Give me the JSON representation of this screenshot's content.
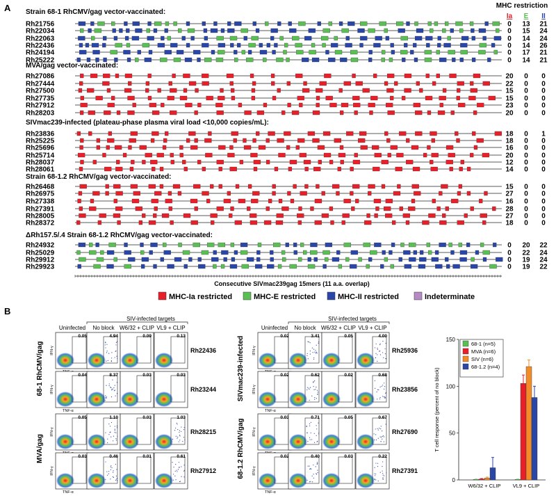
{
  "panel_a": {
    "letter": "A",
    "restriction_header": "MHC restriction",
    "col_labels": [
      "Ia",
      "E",
      "II"
    ],
    "colors": {
      "Ia": "#e8202a",
      "E": "#5cbf55",
      "II": "#2a47a8",
      "indeterminate": "#b48bc4"
    },
    "axis_label": "Consecutive SIVmac239gag 15mers (11 a.a. overlap)",
    "legend": [
      "MHC-Ia restricted",
      "MHC-E restricted",
      "MHC-II restricted",
      "Indeterminate"
    ],
    "groups": [
      {
        "title": "Strain 68-1 RhCMV/gag vector-vaccinated:",
        "kind": "mix",
        "rows": [
          {
            "id": "Rh21756",
            "counts": [
              "0",
              "13",
              "21"
            ]
          },
          {
            "id": "Rh22034",
            "counts": [
              "0",
              "15",
              "24"
            ]
          },
          {
            "id": "Rh22063",
            "counts": [
              "0",
              "14",
              "24"
            ]
          },
          {
            "id": "Rh22436",
            "counts": [
              "0",
              "14",
              "26"
            ]
          },
          {
            "id": "Rh24194",
            "counts": [
              "0",
              "17",
              "21"
            ]
          },
          {
            "id": "Rh25222",
            "counts": [
              "0",
              "14",
              "21"
            ]
          }
        ]
      },
      {
        "title": "MVA/gag vector-vaccinated:",
        "kind": "red",
        "rows": [
          {
            "id": "Rh27086",
            "counts": [
              "20",
              "0",
              "0"
            ]
          },
          {
            "id": "Rh27444",
            "counts": [
              "22",
              "0",
              "0"
            ]
          },
          {
            "id": "Rh27500",
            "counts": [
              "15",
              "0",
              "0"
            ]
          },
          {
            "id": "Rh27735",
            "counts": [
              "15",
              "0",
              "0"
            ]
          },
          {
            "id": "Rh27912",
            "counts": [
              "23",
              "0",
              "0"
            ]
          },
          {
            "id": "Rh28203",
            "counts": [
              "20",
              "0",
              "0"
            ]
          }
        ]
      },
      {
        "title": "SIVmac239-infected (plateau-phase plasma viral load <10,000 copies/mL):",
        "kind": "red",
        "rows": [
          {
            "id": "Rh23836",
            "counts": [
              "18",
              "0",
              "1"
            ]
          },
          {
            "id": "Rh25225",
            "counts": [
              "18",
              "0",
              "0"
            ]
          },
          {
            "id": "Rh25696",
            "counts": [
              "16",
              "0",
              "0"
            ]
          },
          {
            "id": "Rh25714",
            "counts": [
              "20",
              "0",
              "0"
            ]
          },
          {
            "id": "Rh28037",
            "counts": [
              "12",
              "0",
              "0"
            ]
          },
          {
            "id": "Rh28061",
            "counts": [
              "14",
              "0",
              "0"
            ]
          }
        ]
      },
      {
        "title": "Strain 68-1.2 RhCMV/gag vector-vaccinated:",
        "kind": "red",
        "rows": [
          {
            "id": "Rh26468",
            "counts": [
              "15",
              "0",
              "0"
            ]
          },
          {
            "id": "Rh26975",
            "counts": [
              "27",
              "0",
              "0"
            ]
          },
          {
            "id": "Rh27338",
            "counts": [
              "16",
              "0",
              "0"
            ]
          },
          {
            "id": "Rh27391",
            "counts": [
              "28",
              "0",
              "0"
            ]
          },
          {
            "id": "Rh28005",
            "counts": [
              "27",
              "0",
              "0"
            ]
          },
          {
            "id": "Rh28372",
            "counts": [
              "18",
              "0",
              "0"
            ]
          }
        ]
      },
      {
        "title": "ΔRh157.5/.4 Strain 68-1.2 RhCMV/gag vector-vaccinated:",
        "kind": "mix",
        "rows": [
          {
            "id": "Rh24932",
            "counts": [
              "0",
              "20",
              "22"
            ]
          },
          {
            "id": "Rh25029",
            "counts": [
              "0",
              "22",
              "24"
            ]
          },
          {
            "id": "Rh29912",
            "counts": [
              "0",
              "19",
              "24"
            ]
          },
          {
            "id": "Rh29923",
            "counts": [
              "0",
              "19",
              "22"
            ]
          }
        ]
      }
    ]
  },
  "panel_b": {
    "letter": "B",
    "header_siv": "SIV-infected targets",
    "col_headers": [
      "Uninfected",
      "No block",
      "W6/32 + CLIP",
      "VL9 + CLIP"
    ],
    "y_axis": "IFN-γ",
    "x_axis": "TNF-α",
    "blocks": [
      {
        "group": "68-1 RhCMV/gag",
        "rows": [
          {
            "id": "Rh22436",
            "values": [
              "0.05",
              "4.94",
              "0.09",
              "0.13"
            ]
          },
          {
            "id": "Rh23244",
            "values": [
              "0.04",
              "8.37",
              "0.03",
              "0.03"
            ]
          }
        ]
      },
      {
        "group": "MVA/gag",
        "rows": [
          {
            "id": "Rh28215",
            "values": [
              "0.05",
              "1.10",
              "0.03",
              "1.03"
            ]
          },
          {
            "id": "Rh27912",
            "values": [
              "0.03",
              "0.46",
              "0.01",
              "0.61"
            ]
          }
        ]
      },
      {
        "group": "SIVmac239-infected",
        "rows": [
          {
            "id": "Rh25936",
            "values": [
              "0.02",
              "3.41",
              "0.05",
              "4.00"
            ]
          },
          {
            "id": "Rh23856",
            "values": [
              "0.02",
              "0.62",
              "0.02",
              "0.68"
            ]
          }
        ]
      },
      {
        "group": "68-1.2 RhCMV/gag",
        "rows": [
          {
            "id": "Rh27690",
            "values": [
              "0.03",
              "0.71",
              "0.05",
              "0.67"
            ]
          },
          {
            "id": "Rh27391",
            "values": [
              "0.02",
              "0.40",
              "0.03",
              "0.22"
            ]
          }
        ]
      }
    ]
  },
  "chart_data": {
    "type": "bar",
    "ylabel": "T cell response (percent of no block)",
    "ylim": [
      0,
      150
    ],
    "yticks": [
      "0",
      "50",
      "100",
      "150"
    ],
    "categories": [
      "W6/32 + CLIP",
      "VL9 + CLIP"
    ],
    "series": [
      {
        "name": "68-1 (n=5)",
        "color": "#5cbf55",
        "values": [
          0.5,
          0.5
        ],
        "errors": [
          0.3,
          0.3
        ]
      },
      {
        "name": "MVA (n=6)",
        "color": "#e8202a",
        "values": [
          1,
          103
        ],
        "errors": [
          0.5,
          9
        ]
      },
      {
        "name": "SIV (n=6)",
        "color": "#f28c28",
        "values": [
          2,
          121
        ],
        "errors": [
          1,
          7
        ]
      },
      {
        "name": "68-1.2 (n=4)",
        "color": "#2a47a8",
        "values": [
          13,
          88
        ],
        "errors": [
          11,
          12
        ]
      }
    ],
    "legend_position": "top-left"
  }
}
